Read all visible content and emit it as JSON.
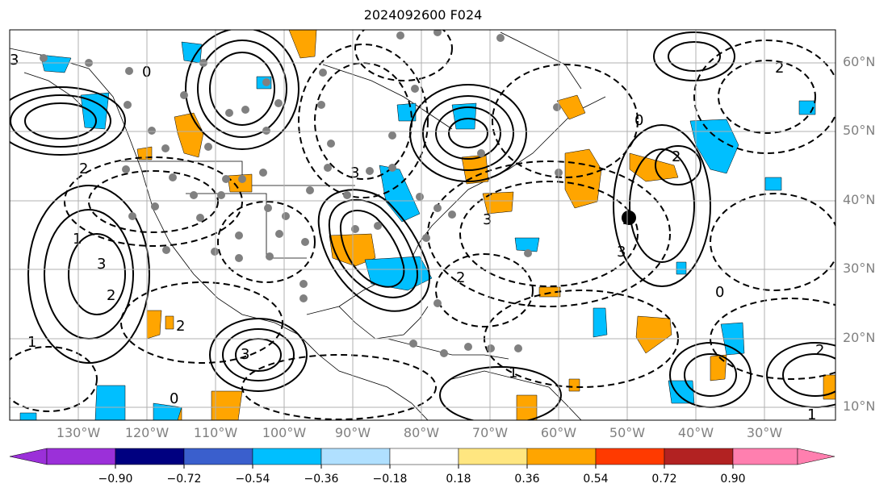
{
  "title": "2024092600 F024",
  "lat_labels": [
    "60°N",
    "50°N",
    "40°N",
    "30°N",
    "20°N",
    "10°N"
  ],
  "lon_labels": [
    "130°W",
    "120°W",
    "110°W",
    "100°W",
    "90°W",
    "80°W",
    "70°W",
    "60°W",
    "50°W",
    "40°W",
    "30°W"
  ],
  "colorbar": {
    "ticks": [
      "−0.90",
      "−0.72",
      "−0.54",
      "−0.36",
      "−0.18",
      "0.18",
      "0.36",
      "0.54",
      "0.72",
      "0.90"
    ],
    "colors": [
      "#9b30d9",
      "#000080",
      "#3a5fcd",
      "#00bfff",
      "#b0e0ff",
      "#ffffff",
      "#ffe680",
      "#ffa500",
      "#ff3a00",
      "#b22222",
      "#ff7faf"
    ]
  },
  "contour_labels": [
    "3",
    "2",
    "0",
    "1",
    "3",
    "2",
    "3",
    "3",
    "2",
    "0",
    "1",
    "3",
    "2",
    "2",
    "1",
    "0",
    "2",
    "3",
    "1",
    "2",
    "0",
    "1"
  ],
  "colors": {
    "positive": "#ffa500",
    "negative": "#00bfff",
    "station": "#808080",
    "grid": "#b0b0b0"
  }
}
